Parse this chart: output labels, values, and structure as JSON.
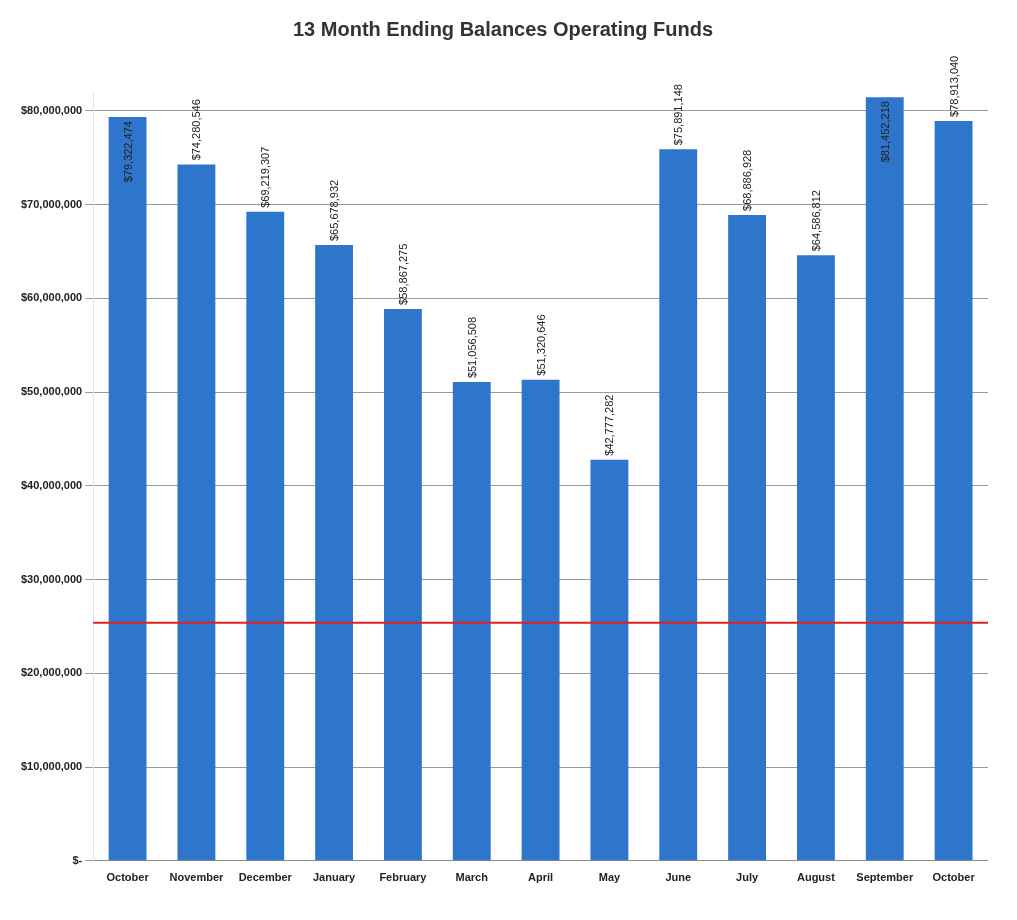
{
  "chart_data": {
    "type": "bar",
    "title": "13 Month Ending Balances Operating Funds",
    "categories": [
      "October",
      "November",
      "December",
      "January",
      "February",
      "March",
      "April",
      "May",
      "June",
      "July",
      "August",
      "September",
      "October"
    ],
    "values": [
      79322474,
      74280546,
      69219307,
      65678932,
      58867275,
      51056508,
      51320646,
      42777282,
      75891148,
      68886928,
      64586812,
      81452218,
      78913040
    ],
    "value_labels": [
      "$79,322,474",
      "$74,280,546",
      "$69,219,307",
      "$65,678,932",
      "$58,867,275",
      "$51,056,508",
      "$51,320,646",
      "$42,777,282",
      "$75,891,148",
      "$68,886,928",
      "$64,586,812",
      "$81,452,218",
      "$78,913,040"
    ],
    "color": "#2e75cc",
    "ylim": [
      0,
      82000000
    ],
    "yticks": [
      {
        "value": 0,
        "label": "$-"
      },
      {
        "value": 10000000,
        "label": "$10,000,000"
      },
      {
        "value": 20000000,
        "label": "$20,000,000"
      },
      {
        "value": 30000000,
        "label": "$30,000,000"
      },
      {
        "value": 40000000,
        "label": "$40,000,000"
      },
      {
        "value": 50000000,
        "label": "$50,000,000"
      },
      {
        "value": 60000000,
        "label": "$60,000,000"
      },
      {
        "value": 70000000,
        "label": "$70,000,000"
      },
      {
        "value": 80000000,
        "label": "$80,000,000"
      }
    ],
    "grid": "y",
    "legend": false,
    "ref_lines": [
      {
        "axis": "y",
        "value": 25400000,
        "color": "#e02020"
      }
    ]
  }
}
